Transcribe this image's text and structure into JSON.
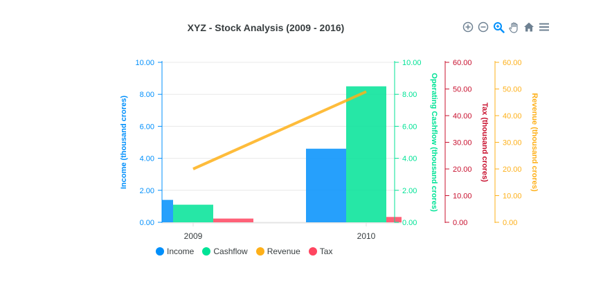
{
  "toolbar": {
    "icons": [
      "zoom-in-icon",
      "zoom-out-icon",
      "zoom-selection-icon",
      "pan-icon",
      "home-icon",
      "menu-icon"
    ]
  },
  "colors": {
    "income": "#008ffb",
    "cashflow": "#00e396",
    "revenue": "#feb019",
    "tax": "#ff4560",
    "tax_axis": "#c8102e"
  },
  "chart_data": {
    "type": "bar",
    "title": "XYZ - Stock Analysis (2009 - 2016)",
    "categories": [
      "2009",
      "2010"
    ],
    "series": [
      {
        "name": "Income",
        "type": "bar",
        "values": [
          1.4,
          4.6
        ]
      },
      {
        "name": "Cashflow",
        "type": "bar",
        "values": [
          1.1,
          8.5
        ]
      },
      {
        "name": "Revenue",
        "type": "line",
        "values": [
          20,
          49
        ]
      },
      {
        "name": "Tax",
        "type": "bar",
        "values": [
          1.4,
          2.0
        ]
      }
    ],
    "axes": [
      {
        "series": "Income",
        "title": "Income (thousand crores)",
        "position": "left",
        "range": [
          0,
          10
        ],
        "ticks": [
          "0.00",
          "2.00",
          "4.00",
          "6.00",
          "8.00",
          "10.00"
        ]
      },
      {
        "series": "Cashflow",
        "title": "Operating Cashflow (thousand crores)",
        "position": "right",
        "range": [
          0,
          10
        ],
        "ticks": [
          "0.00",
          "2.00",
          "4.00",
          "6.00",
          "8.00",
          "10.00"
        ]
      },
      {
        "series": "Tax",
        "title": "Tax (thousand crores)",
        "position": "right",
        "range": [
          0,
          60
        ],
        "ticks": [
          "0.00",
          "10.00",
          "20.00",
          "30.00",
          "40.00",
          "50.00",
          "60.00"
        ]
      },
      {
        "series": "Revenue",
        "title": "Revenue (thousand crores)",
        "position": "right",
        "range": [
          0,
          60
        ],
        "ticks": [
          "0.00",
          "10.00",
          "20.00",
          "30.00",
          "40.00",
          "50.00",
          "60.00"
        ]
      }
    ],
    "grid": true,
    "legend_position": "bottom-left"
  }
}
